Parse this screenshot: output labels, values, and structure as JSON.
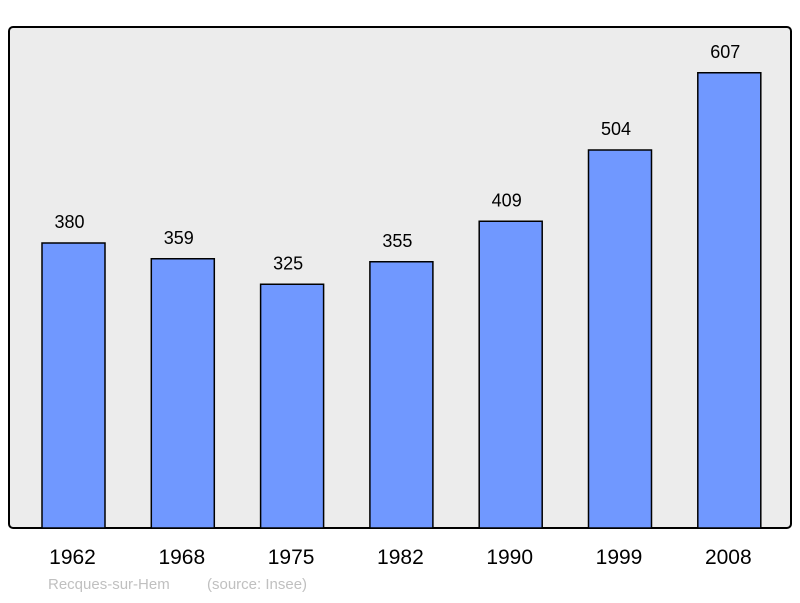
{
  "chart_data": {
    "type": "bar",
    "categories": [
      "1962",
      "1968",
      "1975",
      "1982",
      "1990",
      "1999",
      "2008"
    ],
    "values": [
      380,
      359,
      325,
      355,
      409,
      504,
      607
    ],
    "title": "",
    "xlabel": "",
    "ylabel": "",
    "ylim": [
      0,
      668
    ],
    "grid": false,
    "data_labels": true,
    "colors": {
      "bar": "#7098ff",
      "plot_background": "#ececec",
      "frame": "#000000"
    }
  },
  "footer": {
    "place": "Recques-sur-Hem",
    "source": "(source: Insee)"
  }
}
